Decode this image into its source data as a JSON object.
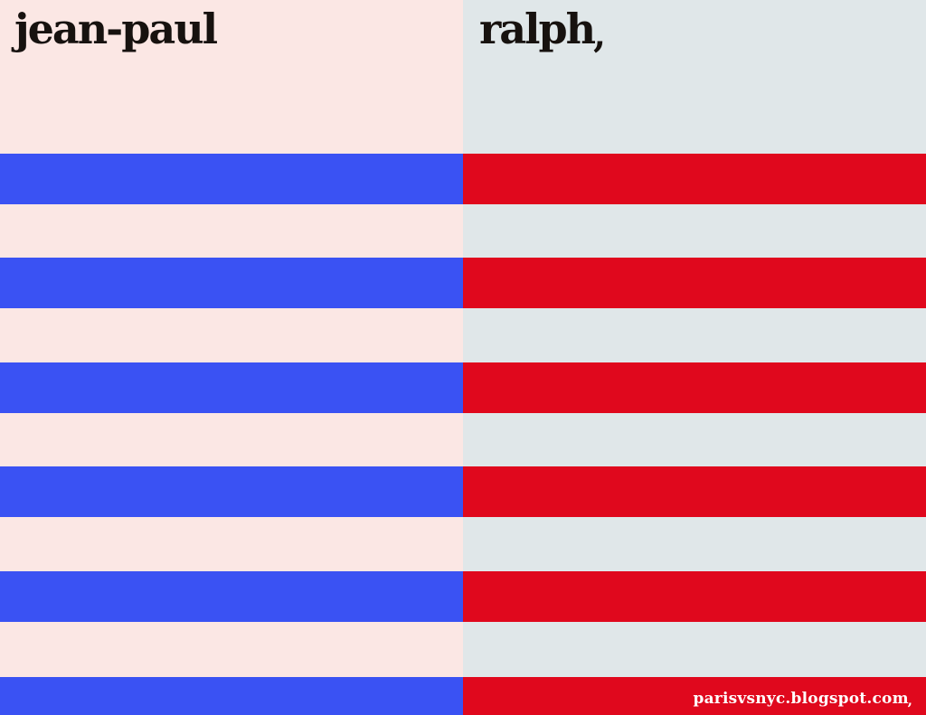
{
  "left": {
    "title": "jean-paul",
    "bg": "#fbe7e4",
    "stripe_color": "#3a52f3"
  },
  "right": {
    "title": "ralph",
    "flourish": ",",
    "bg": "#e0e7e9",
    "stripe_color": "#e0081d"
  },
  "stripes": {
    "tops": [
      170,
      285,
      401,
      516,
      632,
      749
    ],
    "height": 56
  },
  "watermark": {
    "text": "parisvsnyc.blogspot.com",
    "flourish": ",",
    "color": "#ffffff"
  },
  "title_color": "#17120f"
}
